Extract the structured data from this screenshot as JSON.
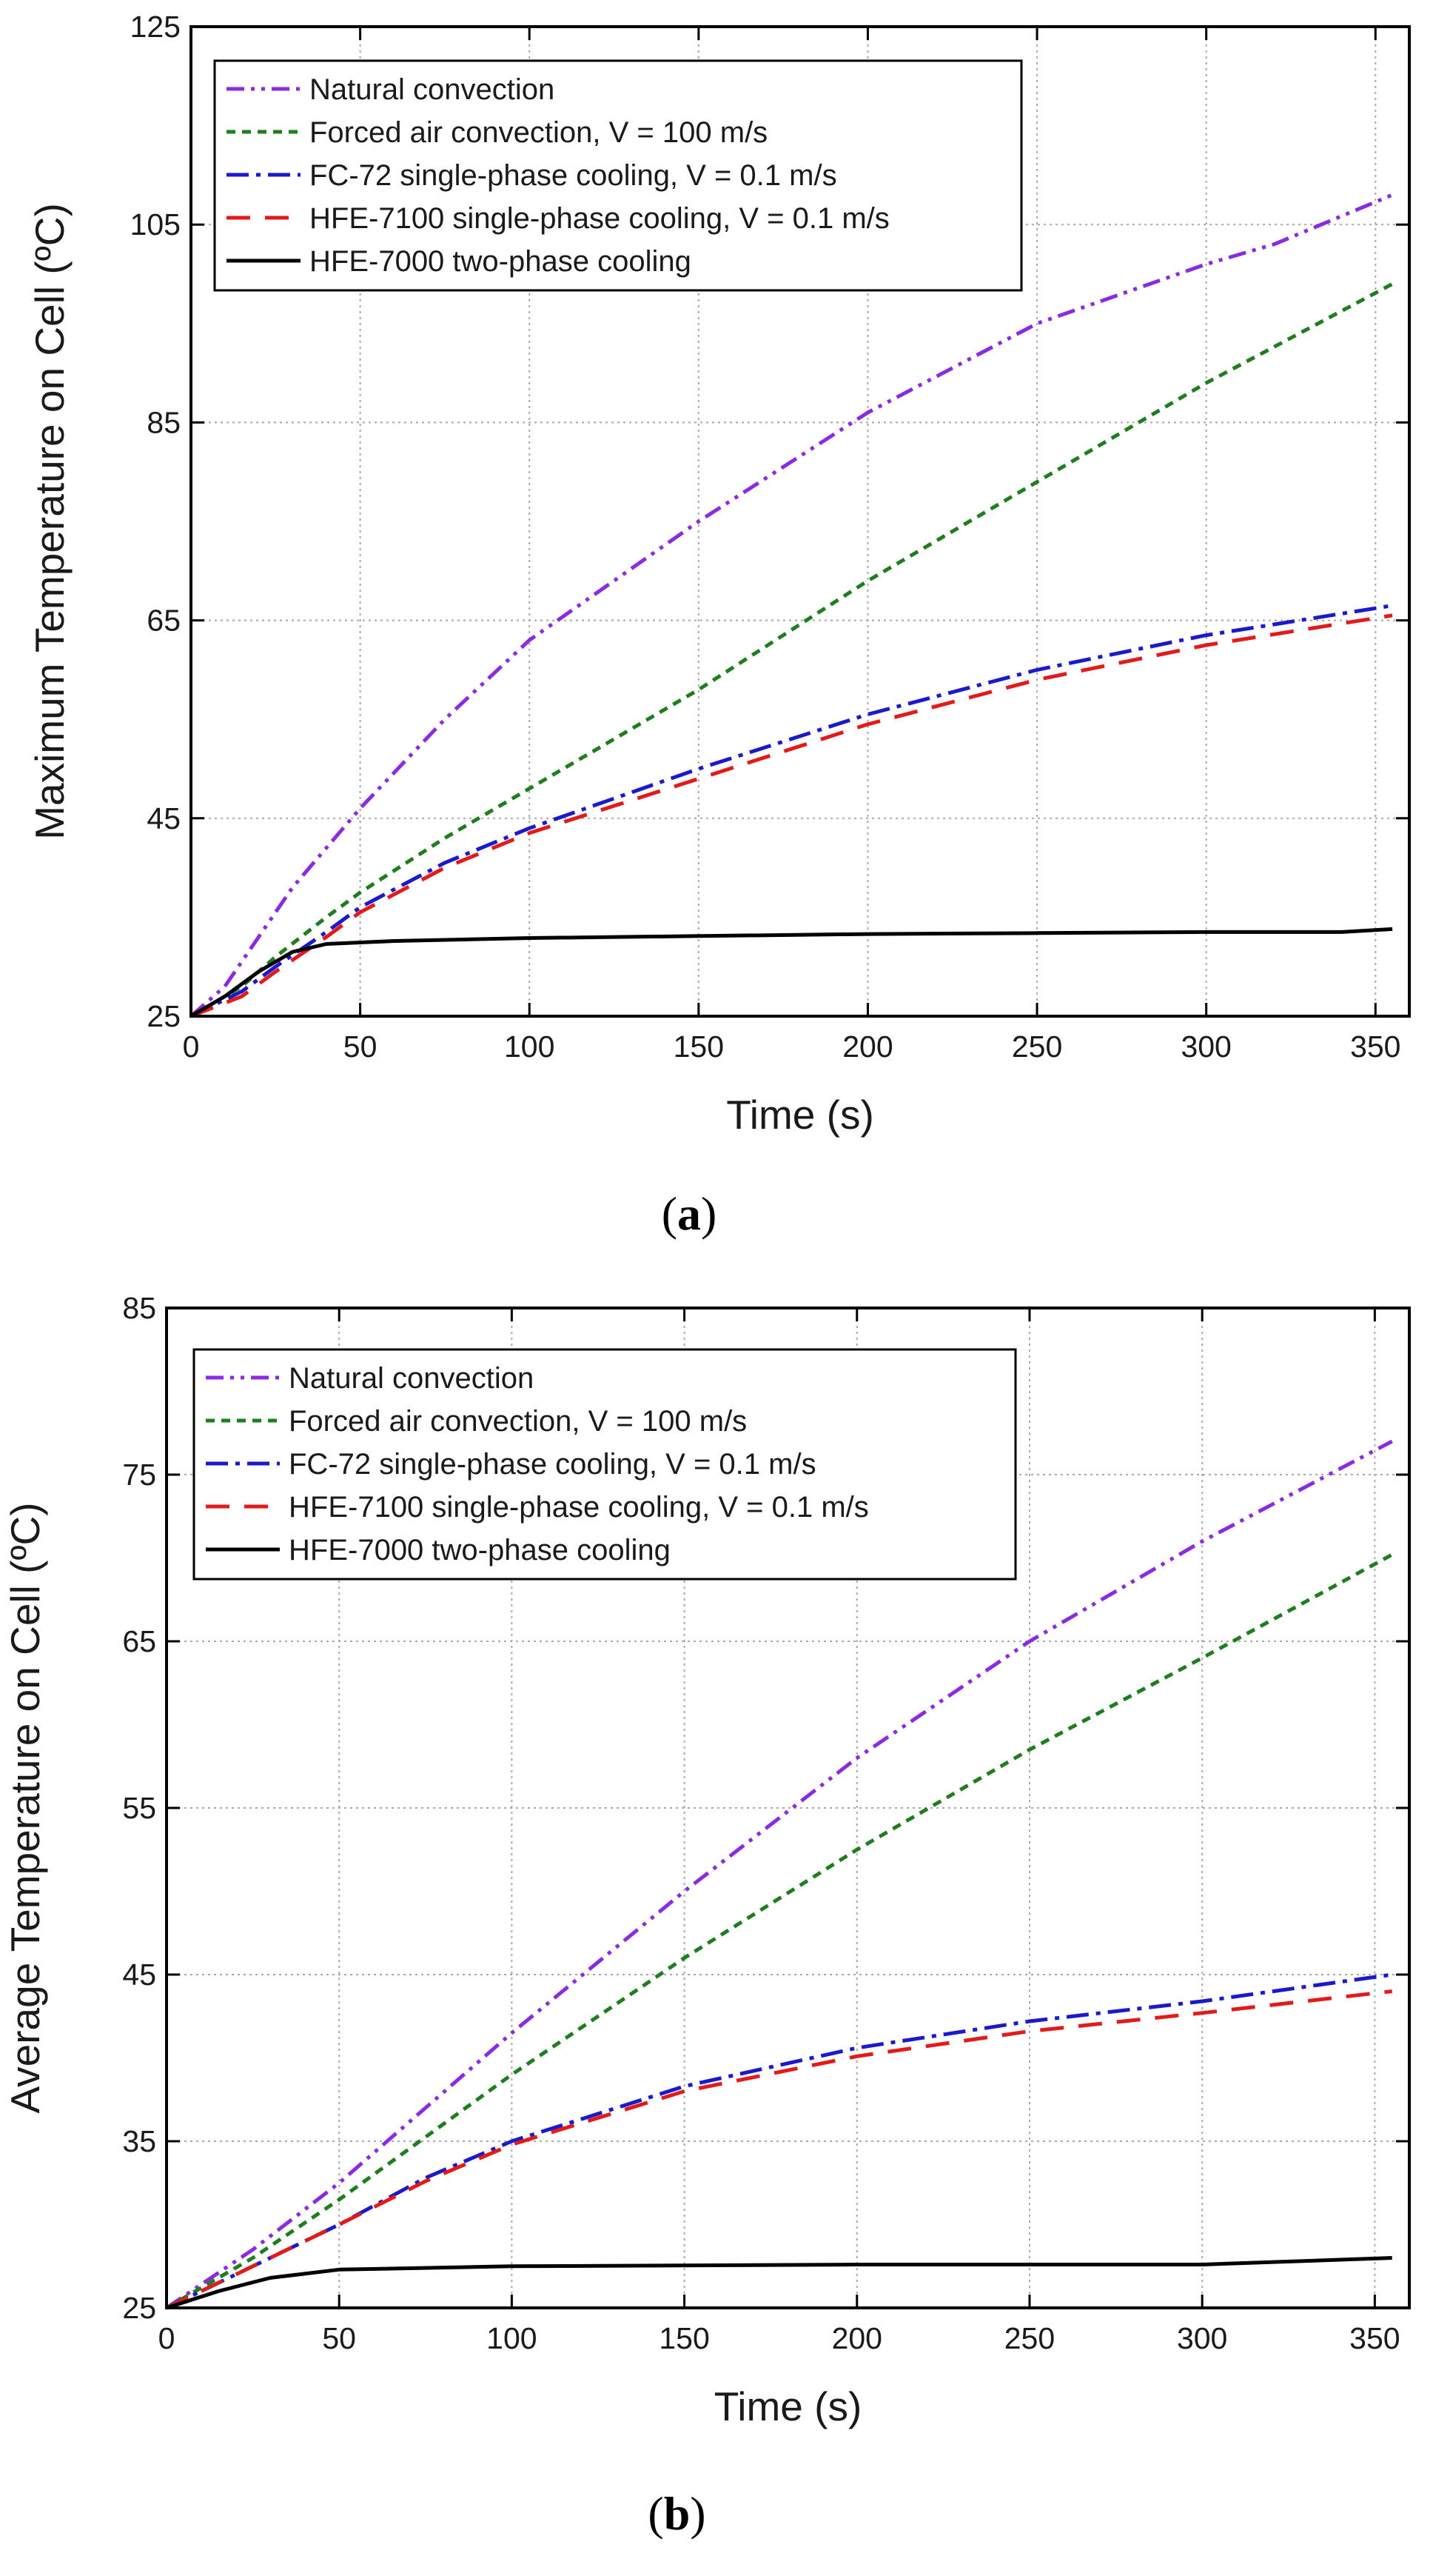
{
  "chart_data": [
    {
      "type": "line",
      "caption": "a",
      "xlabel": "Time (s)",
      "ylabel": "Maximum Temperature on Cell (ºC)",
      "xlim": [
        0,
        360
      ],
      "ylim": [
        25,
        125
      ],
      "xticks": [
        0,
        50,
        100,
        150,
        200,
        250,
        300,
        350
      ],
      "yticks": [
        25,
        45,
        65,
        85,
        105,
        125
      ],
      "grid": true,
      "legend_position": "top-left",
      "series": [
        {
          "name": "Natural convection",
          "color": "#8a2be2",
          "dash": "dashdotdot",
          "points": [
            [
              0,
              25
            ],
            [
              10,
              28
            ],
            [
              20,
              33
            ],
            [
              30,
              38
            ],
            [
              50,
              46
            ],
            [
              75,
              55
            ],
            [
              100,
              63
            ],
            [
              150,
              75
            ],
            [
              200,
              86
            ],
            [
              250,
              95
            ],
            [
              300,
              101
            ],
            [
              320,
              103
            ],
            [
              355,
              108
            ]
          ]
        },
        {
          "name": "Forced air convection, V = 100 m/s",
          "color": "#1e7d1e",
          "dash": "short",
          "points": [
            [
              0,
              25
            ],
            [
              15,
              28
            ],
            [
              25,
              31
            ],
            [
              40,
              35
            ],
            [
              50,
              37.5
            ],
            [
              75,
              43
            ],
            [
              100,
              48
            ],
            [
              150,
              58
            ],
            [
              200,
              69
            ],
            [
              250,
              79
            ],
            [
              300,
              89
            ],
            [
              355,
              99
            ]
          ]
        },
        {
          "name": "FC-72 single-phase cooling, V = 0.1 m/s",
          "color": "#1a1acc",
          "dash": "dashdot",
          "points": [
            [
              0,
              25
            ],
            [
              15,
              27.5
            ],
            [
              25,
              30
            ],
            [
              40,
              33.5
            ],
            [
              50,
              36
            ],
            [
              75,
              40.5
            ],
            [
              100,
              44
            ],
            [
              150,
              50
            ],
            [
              200,
              55.5
            ],
            [
              250,
              60
            ],
            [
              300,
              63.5
            ],
            [
              355,
              66.5
            ]
          ]
        },
        {
          "name": "HFE-7100 single-phase cooling, V = 0.1 m/s",
          "color": "#e31a1a",
          "dash": "long",
          "points": [
            [
              0,
              25
            ],
            [
              15,
              27
            ],
            [
              25,
              29.5
            ],
            [
              40,
              33
            ],
            [
              50,
              35.5
            ],
            [
              75,
              40
            ],
            [
              100,
              43.5
            ],
            [
              150,
              49
            ],
            [
              200,
              54.5
            ],
            [
              250,
              59
            ],
            [
              300,
              62.5
            ],
            [
              355,
              65.5
            ]
          ]
        },
        {
          "name": "HFE-7000 two-phase cooling",
          "color": "#000000",
          "dash": "solid",
          "points": [
            [
              0,
              25
            ],
            [
              10,
              27
            ],
            [
              20,
              29.5
            ],
            [
              30,
              31.5
            ],
            [
              40,
              32.3
            ],
            [
              60,
              32.6
            ],
            [
              100,
              32.9
            ],
            [
              150,
              33.1
            ],
            [
              200,
              33.3
            ],
            [
              250,
              33.4
            ],
            [
              300,
              33.5
            ],
            [
              340,
              33.5
            ],
            [
              355,
              33.8
            ]
          ]
        }
      ]
    },
    {
      "type": "line",
      "caption": "b",
      "xlabel": "Time (s)",
      "ylabel": "Average Temperature on Cell (ºC)",
      "xlim": [
        0,
        360
      ],
      "ylim": [
        25,
        85
      ],
      "xticks": [
        0,
        50,
        100,
        150,
        200,
        250,
        300,
        350
      ],
      "yticks": [
        25,
        35,
        45,
        55,
        65,
        75,
        85
      ],
      "grid": true,
      "legend_position": "top-left",
      "series": [
        {
          "name": "Natural convection",
          "color": "#8a2be2",
          "dash": "dashdotdot",
          "points": [
            [
              0,
              25
            ],
            [
              25,
              28.5
            ],
            [
              50,
              32.5
            ],
            [
              100,
              41.5
            ],
            [
              150,
              50
            ],
            [
              200,
              58
            ],
            [
              250,
              65
            ],
            [
              300,
              71
            ],
            [
              355,
              77
            ]
          ]
        },
        {
          "name": "Forced air convection, V = 100 m/s",
          "color": "#1e7d1e",
          "dash": "short",
          "points": [
            [
              0,
              25
            ],
            [
              25,
              28
            ],
            [
              50,
              31.5
            ],
            [
              100,
              39
            ],
            [
              150,
              46
            ],
            [
              200,
              52.5
            ],
            [
              250,
              58.5
            ],
            [
              300,
              64
            ],
            [
              355,
              70.2
            ]
          ]
        },
        {
          "name": "FC-72 single-phase cooling, V = 0.1 m/s",
          "color": "#1a1acc",
          "dash": "dashdot",
          "points": [
            [
              0,
              25
            ],
            [
              25,
              27.5
            ],
            [
              50,
              30
            ],
            [
              75,
              32.8
            ],
            [
              100,
              35
            ],
            [
              150,
              38.3
            ],
            [
              200,
              40.6
            ],
            [
              250,
              42.2
            ],
            [
              300,
              43.4
            ],
            [
              355,
              45
            ]
          ]
        },
        {
          "name": "HFE-7100 single-phase cooling, V = 0.1 m/s",
          "color": "#e31a1a",
          "dash": "long",
          "points": [
            [
              0,
              25
            ],
            [
              25,
              27.5
            ],
            [
              50,
              30
            ],
            [
              75,
              32.6
            ],
            [
              100,
              34.8
            ],
            [
              150,
              38
            ],
            [
              200,
              40.1
            ],
            [
              250,
              41.6
            ],
            [
              300,
              42.7
            ],
            [
              355,
              44
            ]
          ]
        },
        {
          "name": "HFE-7000 two-phase cooling",
          "color": "#000000",
          "dash": "solid",
          "points": [
            [
              0,
              25
            ],
            [
              15,
              26
            ],
            [
              30,
              26.8
            ],
            [
              50,
              27.3
            ],
            [
              100,
              27.5
            ],
            [
              200,
              27.6
            ],
            [
              300,
              27.6
            ],
            [
              355,
              28
            ]
          ]
        }
      ]
    }
  ]
}
